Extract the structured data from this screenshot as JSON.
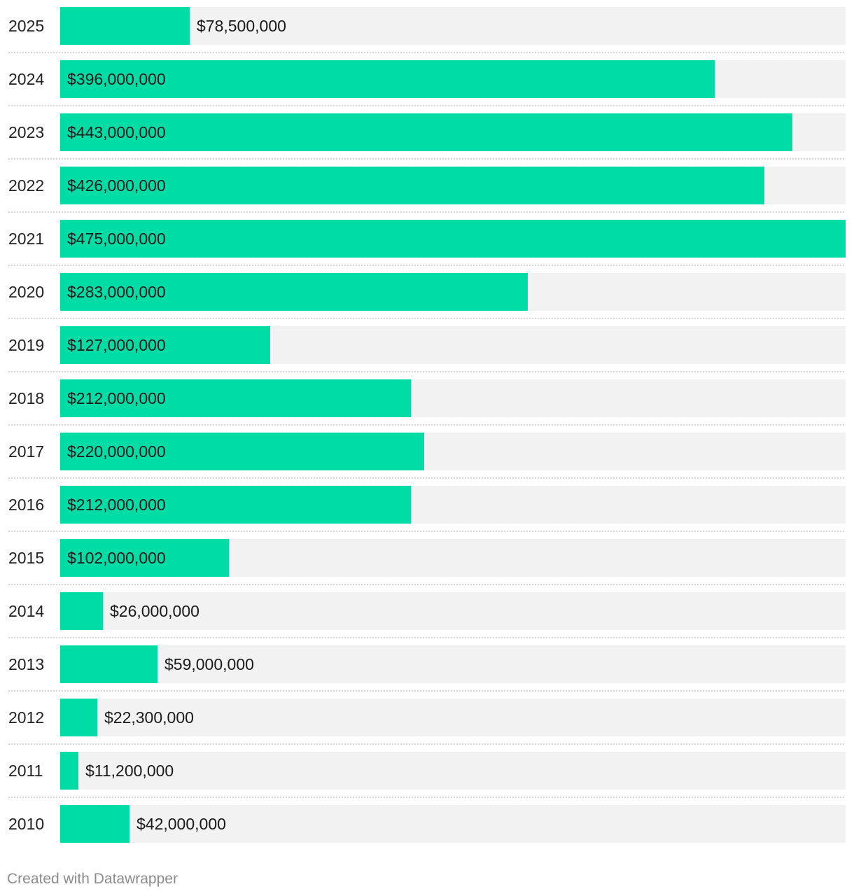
{
  "chart_data": {
    "type": "bar",
    "orientation": "horizontal",
    "categories": [
      "2025",
      "2024",
      "2023",
      "2022",
      "2021",
      "2020",
      "2019",
      "2018",
      "2017",
      "2016",
      "2015",
      "2014",
      "2013",
      "2012",
      "2011",
      "2010"
    ],
    "values": [
      78500000,
      396000000,
      443000000,
      426000000,
      475000000,
      283000000,
      127000000,
      212000000,
      220000000,
      212000000,
      102000000,
      26000000,
      59000000,
      22300000,
      11200000,
      42000000
    ],
    "labels": [
      "$78,500,000",
      "$396,000,000",
      "$443,000,000",
      "$426,000,000",
      "$475,000,000",
      "$283,000,000",
      "$127,000,000",
      "$212,000,000",
      "$220,000,000",
      "$212,000,000",
      "$102,000,000",
      "$26,000,000",
      "$59,000,000",
      "$22,300,000",
      "$11,200,000",
      "$42,000,000"
    ],
    "xlim": [
      0,
      475000000
    ],
    "bar_color": "#00dca5",
    "track_color": "#f2f2f2"
  },
  "footer": {
    "credit": "Created with Datawrapper"
  }
}
